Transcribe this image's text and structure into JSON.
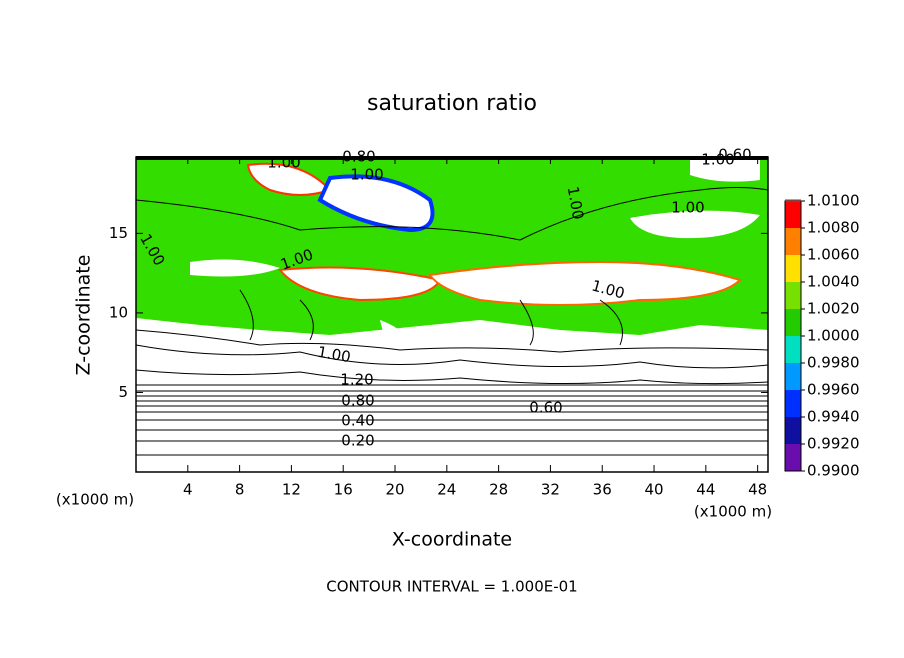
{
  "chart_data": {
    "type": "contour",
    "title": "saturation ratio",
    "x_label": "X-coordinate",
    "y_label": "Z-coordinate",
    "unit_label": "(x1000 m)",
    "xlim": [
      0,
      48.8
    ],
    "xticks": [
      4,
      8,
      12,
      16,
      20,
      24,
      28,
      32,
      36,
      40,
      44,
      48
    ],
    "ylim": [
      0,
      19.8
    ],
    "yticks": [
      5,
      10,
      15
    ],
    "colorbar": {
      "lim": [
        0.99,
        1.01
      ],
      "ticks": [
        {
          "value": 0.99,
          "label": "0.9900"
        },
        {
          "value": 0.992,
          "label": "0.9920"
        },
        {
          "value": 0.994,
          "label": "0.9940"
        },
        {
          "value": 0.996,
          "label": "0.9960"
        },
        {
          "value": 0.998,
          "label": "0.9980"
        },
        {
          "value": 1.0,
          "label": "1.0000"
        },
        {
          "value": 1.002,
          "label": "1.0020"
        },
        {
          "value": 1.004,
          "label": "1.0040"
        },
        {
          "value": 1.006,
          "label": "1.0060"
        },
        {
          "value": 1.008,
          "label": "1.0080"
        },
        {
          "value": 1.01,
          "label": "1.0100"
        }
      ],
      "colors": [
        "#6a0dad",
        "#1010a0",
        "#0030ff",
        "#0099ff",
        "#00e0c0",
        "#22cc00",
        "#77e000",
        "#ffe000",
        "#ff8000",
        "#ff0000",
        "#f08888"
      ]
    },
    "contour_labels": [
      "1.00",
      "0.80",
      "1.00",
      "0.60",
      "1.00",
      "1.00",
      "1.00",
      "1.00",
      "1.00",
      "1.00",
      "1.00",
      "1.20",
      "0.80",
      "0.60",
      "0.40",
      "0.20"
    ],
    "footnote": "CONTOUR INTERVAL = 1.000E-01"
  }
}
